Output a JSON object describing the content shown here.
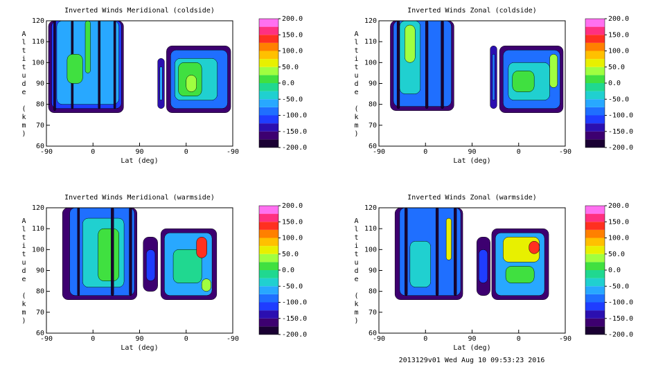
{
  "chart_data": [
    {
      "type": "contour",
      "title": "Inverted Winds Meridional (coldside)",
      "xlabel": "Lat (deg)",
      "ylabel": "Altitude (km)",
      "xlim": [
        0,
        360
      ],
      "xticks": [
        {
          "value": 0,
          "label": "-90"
        },
        {
          "value": 90,
          "label": "0"
        },
        {
          "value": 180,
          "label": "90"
        },
        {
          "value": 270,
          "label": "0"
        },
        {
          "value": 360,
          "label": "-90"
        }
      ],
      "ylim": [
        60,
        120
      ],
      "yticks": [
        60,
        70,
        80,
        90,
        100,
        110,
        120
      ],
      "regions": [
        [
          4,
          149,
          76,
          120,
          -160
        ],
        [
          10,
          145,
          78,
          120,
          -110
        ],
        [
          20,
          140,
          80,
          120,
          -60
        ],
        [
          14,
          18,
          77,
          120,
          -190
        ],
        [
          48,
          52,
          78,
          120,
          -180
        ],
        [
          100,
          104,
          78,
          120,
          -180
        ],
        [
          130,
          134,
          78,
          120,
          -190
        ],
        [
          40,
          70,
          90,
          104,
          15
        ],
        [
          75,
          85,
          95,
          120,
          20
        ],
        [
          215,
          228,
          78,
          102,
          -150
        ],
        [
          219,
          224,
          82,
          98,
          -60
        ],
        [
          232,
          356,
          76,
          108,
          -160
        ],
        [
          240,
          350,
          78,
          106,
          -90
        ],
        [
          248,
          330,
          82,
          102,
          -40
        ],
        [
          255,
          300,
          84,
          100,
          10
        ],
        [
          270,
          290,
          86,
          94,
          35
        ]
      ],
      "clim": [
        -200,
        200
      ],
      "cticks": [
        {
          "value": 200,
          "label": "200.0"
        },
        {
          "value": 150,
          "label": "150.0"
        },
        {
          "value": 100,
          "label": "100.0"
        },
        {
          "value": 50,
          "label": "50.0"
        },
        {
          "value": 0,
          "label": "0.0"
        },
        {
          "value": -50,
          "label": "-50.0"
        },
        {
          "value": -100,
          "label": "-100.0"
        },
        {
          "value": -150,
          "label": "-150.0"
        },
        {
          "value": -200,
          "label": "-200.0"
        }
      ],
      "colors": [
        "#1a0033",
        "#3d0070",
        "#2b0fb0",
        "#1f3dff",
        "#1f6fff",
        "#28a8ff",
        "#20d0d0",
        "#20d890",
        "#40e040",
        "#a0ff40",
        "#e8f000",
        "#ffc000",
        "#ff8000",
        "#ff3020",
        "#ff3080",
        "#ff70f0"
      ]
    },
    {
      "type": "contour",
      "title": "Inverted Winds Zonal (coldside)",
      "xlabel": "Lat (deg)",
      "ylabel": "Altitude (km)",
      "xlim": [
        0,
        360
      ],
      "xticks": [
        {
          "value": 0,
          "label": "-90"
        },
        {
          "value": 90,
          "label": "0"
        },
        {
          "value": 180,
          "label": "90"
        },
        {
          "value": 270,
          "label": "0"
        },
        {
          "value": 360,
          "label": "-90"
        }
      ],
      "ylim": [
        60,
        120
      ],
      "yticks": [
        60,
        70,
        80,
        90,
        100,
        110,
        120
      ],
      "regions": [
        [
          22,
          145,
          77,
          120,
          -160
        ],
        [
          28,
          140,
          79,
          120,
          -90
        ],
        [
          40,
          80,
          85,
          120,
          -40
        ],
        [
          50,
          70,
          100,
          118,
          40
        ],
        [
          35,
          40,
          78,
          120,
          -190
        ],
        [
          90,
          95,
          78,
          120,
          -190
        ],
        [
          120,
          125,
          78,
          120,
          -190
        ],
        [
          215,
          228,
          78,
          108,
          -150
        ],
        [
          219,
          224,
          82,
          104,
          -80
        ],
        [
          233,
          356,
          76,
          108,
          -160
        ],
        [
          240,
          350,
          78,
          106,
          -80
        ],
        [
          250,
          330,
          82,
          100,
          -30
        ],
        [
          258,
          300,
          86,
          96,
          20
        ],
        [
          330,
          345,
          88,
          104,
          30
        ]
      ],
      "clim": [
        -200,
        200
      ],
      "cticks": [
        {
          "value": 200,
          "label": "200.0"
        },
        {
          "value": 150,
          "label": "150.0"
        },
        {
          "value": 100,
          "label": "100.0"
        },
        {
          "value": 50,
          "label": "50.0"
        },
        {
          "value": 0,
          "label": "0.0"
        },
        {
          "value": -50,
          "label": "-50.0"
        },
        {
          "value": -100,
          "label": "-100.0"
        },
        {
          "value": -150,
          "label": "-150.0"
        },
        {
          "value": -200,
          "label": "-200.0"
        }
      ],
      "colors": [
        "#1a0033",
        "#3d0070",
        "#2b0fb0",
        "#1f3dff",
        "#1f6fff",
        "#28a8ff",
        "#20d0d0",
        "#20d890",
        "#40e040",
        "#a0ff40",
        "#e8f000",
        "#ffc000",
        "#ff8000",
        "#ff3020",
        "#ff3080",
        "#ff70f0"
      ]
    },
    {
      "type": "contour",
      "title": "Inverted Winds Meridional (warmside)",
      "xlabel": "Lat (deg)",
      "ylabel": "Altitude (km)",
      "xlim": [
        0,
        360
      ],
      "xticks": [
        {
          "value": 0,
          "label": "-90"
        },
        {
          "value": 90,
          "label": "0"
        },
        {
          "value": 180,
          "label": "90"
        },
        {
          "value": 270,
          "label": "0"
        },
        {
          "value": 360,
          "label": "-90"
        }
      ],
      "ylim": [
        60,
        120
      ],
      "yticks": [
        60,
        70,
        80,
        90,
        100,
        110,
        120
      ],
      "regions": [
        [
          31,
          175,
          76,
          120,
          -160
        ],
        [
          45,
          170,
          78,
          120,
          -100
        ],
        [
          70,
          150,
          82,
          115,
          -40
        ],
        [
          100,
          140,
          85,
          110,
          10
        ],
        [
          60,
          64,
          78,
          120,
          -190
        ],
        [
          125,
          130,
          78,
          120,
          -190
        ],
        [
          160,
          165,
          78,
          120,
          -190
        ],
        [
          187,
          215,
          80,
          106,
          -160
        ],
        [
          193,
          210,
          85,
          100,
          -120
        ],
        [
          221,
          329,
          76,
          110,
          -160
        ],
        [
          228,
          320,
          78,
          108,
          -60
        ],
        [
          245,
          300,
          84,
          100,
          -10
        ],
        [
          290,
          310,
          96,
          106,
          140
        ],
        [
          300,
          318,
          80,
          86,
          40
        ]
      ],
      "clim": [
        -200,
        200
      ],
      "cticks": [
        {
          "value": 200,
          "label": "200.0"
        },
        {
          "value": 150,
          "label": "150.0"
        },
        {
          "value": 100,
          "label": "100.0"
        },
        {
          "value": 50,
          "label": "50.0"
        },
        {
          "value": 0,
          "label": "0.0"
        },
        {
          "value": -50,
          "label": "-50.0"
        },
        {
          "value": -100,
          "label": "-100.0"
        },
        {
          "value": -150,
          "label": "-150.0"
        },
        {
          "value": -200,
          "label": "-200.0"
        }
      ],
      "colors": [
        "#1a0033",
        "#3d0070",
        "#2b0fb0",
        "#1f3dff",
        "#1f6fff",
        "#28a8ff",
        "#20d0d0",
        "#20d890",
        "#40e040",
        "#a0ff40",
        "#e8f000",
        "#ffc000",
        "#ff8000",
        "#ff3020",
        "#ff3080",
        "#ff70f0"
      ]
    },
    {
      "type": "contour",
      "title": "Inverted Winds Zonal (warmside)",
      "xlabel": "Lat (deg)",
      "ylabel": "Altitude (km)",
      "xlim": [
        0,
        360
      ],
      "xticks": [
        {
          "value": 0,
          "label": "-90"
        },
        {
          "value": 90,
          "label": "0"
        },
        {
          "value": 180,
          "label": "90"
        },
        {
          "value": 270,
          "label": "0"
        },
        {
          "value": 360,
          "label": "-90"
        }
      ],
      "ylim": [
        60,
        120
      ],
      "yticks": [
        60,
        70,
        80,
        90,
        100,
        110,
        120
      ],
      "regions": [
        [
          31,
          162,
          76,
          120,
          -160
        ],
        [
          40,
          158,
          78,
          120,
          -90
        ],
        [
          60,
          100,
          82,
          104,
          -30
        ],
        [
          130,
          140,
          95,
          115,
          60
        ],
        [
          50,
          55,
          78,
          120,
          -190
        ],
        [
          110,
          115,
          78,
          120,
          -190
        ],
        [
          145,
          150,
          78,
          120,
          -190
        ],
        [
          189,
          215,
          78,
          106,
          -160
        ],
        [
          193,
          210,
          84,
          100,
          -110
        ],
        [
          218,
          328,
          76,
          110,
          -160
        ],
        [
          225,
          320,
          78,
          108,
          -60
        ],
        [
          240,
          310,
          94,
          106,
          60
        ],
        [
          290,
          310,
          98,
          104,
          130
        ],
        [
          245,
          300,
          84,
          92,
          0
        ]
      ],
      "clim": [
        -200,
        200
      ],
      "cticks": [
        {
          "value": 200,
          "label": "200.0"
        },
        {
          "value": 150,
          "label": "150.0"
        },
        {
          "value": 100,
          "label": "100.0"
        },
        {
          "value": 50,
          "label": "50.0"
        },
        {
          "value": 0,
          "label": "0.0"
        },
        {
          "value": -50,
          "label": "-50.0"
        },
        {
          "value": -100,
          "label": "-100.0"
        },
        {
          "value": -150,
          "label": "-150.0"
        },
        {
          "value": -200,
          "label": "-200.0"
        }
      ],
      "colors": [
        "#1a0033",
        "#3d0070",
        "#2b0fb0",
        "#1f3dff",
        "#1f6fff",
        "#28a8ff",
        "#20d0d0",
        "#20d890",
        "#40e040",
        "#a0ff40",
        "#e8f000",
        "#ffc000",
        "#ff8000",
        "#ff3020",
        "#ff3080",
        "#ff70f0"
      ]
    }
  ],
  "footer": "2013129v01 Wed Aug 10 09:53:23 2016"
}
